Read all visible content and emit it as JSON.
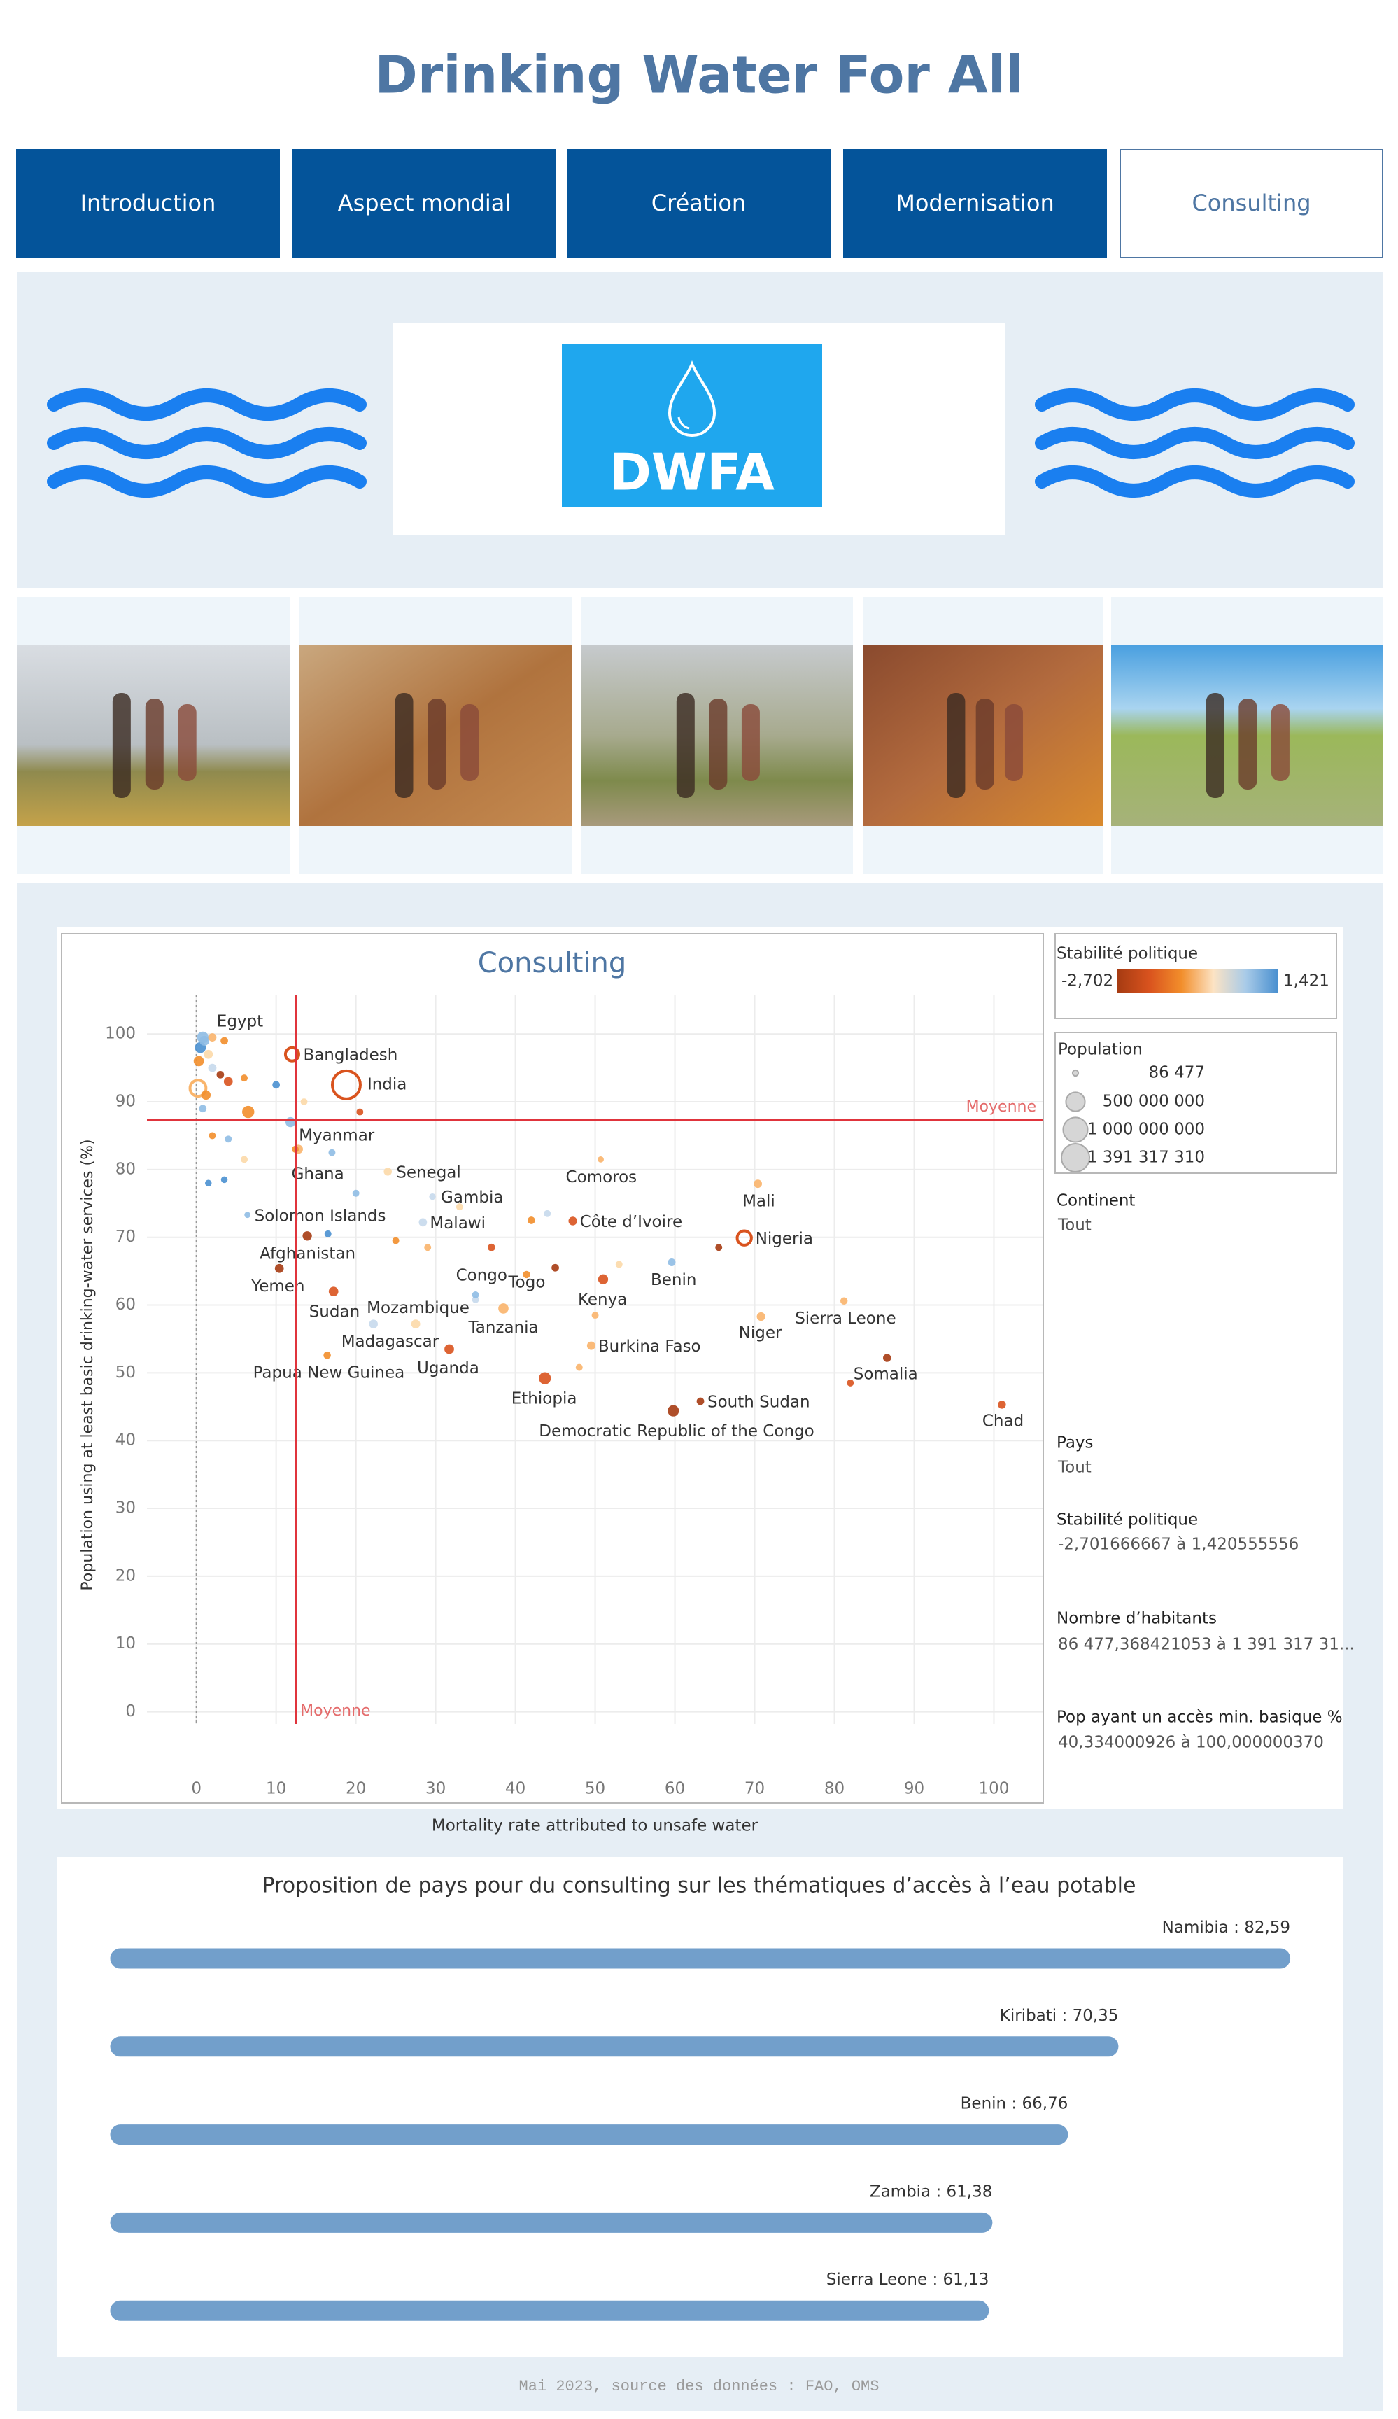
{
  "header": {
    "title": "Drinking Water For All"
  },
  "nav": {
    "items": [
      "Introduction",
      "Aspect mondial",
      "Création",
      "Modernisation",
      "Consulting"
    ],
    "active": 4
  },
  "banner": {
    "logo_text": "DWFA"
  },
  "chart_data": [
    {
      "type": "scatter",
      "title": "Consulting",
      "x_label": "Mortality rate attributed to unsafe water",
      "y_label": "Population using at least basic drinking-water services (%)",
      "xlim": [
        -6.2,
        106.1
      ],
      "ylim": [
        -1.8,
        105.7
      ],
      "xticks": [
        0,
        10,
        20,
        30,
        40,
        50,
        60,
        70,
        80,
        90,
        100
      ],
      "yticks": [
        0,
        10,
        20,
        30,
        40,
        50,
        60,
        70,
        80,
        90,
        100
      ],
      "grid": true,
      "mean_x": 12.5,
      "mean_y": 87.3,
      "mean_label": "Moyenne",
      "labels": [
        "Egypt",
        "Bangladesh",
        "India",
        "Myanmar",
        "Ghana",
        "Senegal",
        "Gambia",
        "Malawi",
        "Solomon Islands",
        "Afghanistan",
        "Yemen",
        "Sudan",
        "Mozambique",
        "Madagascar",
        "Papua New Guinea",
        "Uganda",
        "Congo",
        "Tanzania",
        "Togo",
        "Kenya",
        "Comoros",
        "Côte d’Ivoire",
        "Mali",
        "Nigeria",
        "Benin",
        "Niger",
        "Sierra Leone",
        "Burkina Faso",
        "Ethiopia",
        "South Sudan",
        "Democratic Republic of the Congo",
        "Somalia",
        "Chad",
        null,
        null,
        null,
        null,
        null,
        null,
        null,
        null,
        null,
        null,
        null,
        null,
        null,
        null,
        null,
        null,
        null,
        null,
        null,
        null,
        null,
        null,
        null,
        null,
        null,
        null,
        null,
        null,
        null,
        null,
        null,
        null,
        null,
        null,
        null,
        null,
        null
      ],
      "x": [
        0.8,
        12,
        18.8,
        11.8,
        12.8,
        24,
        29.6,
        28.4,
        6.4,
        13.9,
        10.4,
        17.2,
        27.5,
        22.2,
        16.4,
        31.7,
        35,
        38.5,
        41.4,
        51,
        50.7,
        47.2,
        70.4,
        68.7,
        59.6,
        70.8,
        81.2,
        49.5,
        43.7,
        63.2,
        59.8,
        86.6,
        101,
        0.5,
        1,
        2,
        3.5,
        0.3,
        1.5,
        0.2,
        1.2,
        2,
        4,
        3,
        6.5,
        0.8,
        2,
        4,
        6,
        1.5,
        3.5,
        10,
        13.5,
        17,
        20,
        16.5,
        20.5,
        25,
        29,
        33,
        37,
        42,
        44,
        45,
        48,
        50,
        65.5,
        82,
        53,
        35,
        12.4,
        6
      ],
      "y": [
        99.5,
        97,
        92.5,
        87,
        83,
        79.7,
        76,
        72.2,
        73.3,
        70.2,
        65.4,
        62,
        57.2,
        57.2,
        52.6,
        53.5,
        60.8,
        59.5,
        64.5,
        63.8,
        81.5,
        72.4,
        77.9,
        69.9,
        66.3,
        58.3,
        60.6,
        54,
        49.2,
        45.8,
        44.4,
        52.2,
        45.3,
        98,
        99,
        99.5,
        99,
        96,
        97,
        92,
        91,
        95,
        93,
        94,
        88.5,
        89,
        85,
        84.5,
        81.5,
        78,
        78.5,
        92.5,
        90,
        82.5,
        76.5,
        70.5,
        88.5,
        69.5,
        68.5,
        74.5,
        68.5,
        72.5,
        73.5,
        65.5,
        50.8,
        58.5,
        68.5,
        48.5,
        66,
        61.5,
        83,
        93.5
      ],
      "sizes": [
        102000000,
        165000000,
        1391317310,
        54000000,
        31000000,
        17000000,
        2400000,
        19000000,
        700000,
        39000000,
        30000000,
        44000000,
        31000000,
        28000000,
        9000000,
        46000000,
        5500000,
        60000000,
        8000000,
        54000000,
        900000,
        26000000,
        20000000,
        206000000,
        12000000,
        24000000,
        8000000,
        21000000,
        115000000,
        11000000,
        90000000,
        16000000,
        16000000,
        80000000,
        50000000,
        20000000,
        10000000,
        60000000,
        30000000,
        300000000,
        40000000,
        20000000,
        30000000,
        10000000,
        120000000,
        10000000,
        5000000,
        5000000,
        5000000,
        3000000,
        3000000,
        10000000,
        5000000,
        5000000,
        5000000,
        5000000,
        5000000,
        5000000,
        5000000,
        5000000,
        10000000,
        10000000,
        5000000,
        10000000,
        5000000,
        5000000,
        5000000,
        5000000,
        5000000,
        5000000,
        5000000,
        5000000
      ],
      "colors": [
        "#8fbce4",
        "#d9531e",
        "#d9531e",
        "#8fbce4",
        "#f9b46b",
        "#fcd9a8",
        "#c6d9ec",
        "#c6d9ec",
        "#8fbce4",
        "#a63b12",
        "#a63b12",
        "#d9531e",
        "#fcd9a8",
        "#c6d9ec",
        "#f28e2b",
        "#d9531e",
        "#c6d9ec",
        "#f9b46b",
        "#f28e2b",
        "#d9531e",
        "#f9b46b",
        "#d9531e",
        "#f9b46b",
        "#d9531e",
        "#8fbce4",
        "#f9b46b",
        "#f9b46b",
        "#f9b46b",
        "#d9531e",
        "#a63b12",
        "#a63b12",
        "#a63b12",
        "#d9531e",
        "#4a90d0",
        "#8fbce4",
        "#f9b46b",
        "#f28e2b",
        "#f28e2b",
        "#fcd9a8",
        "#f9b46b",
        "#f28e2b",
        "#c6d9ec",
        "#d9531e",
        "#a63b12",
        "#f28e2b",
        "#8fbce4",
        "#f28e2b",
        "#8fbce4",
        "#fcd9a8",
        "#4a90d0",
        "#4a90d0",
        "#4a90d0",
        "#fcd9a8",
        "#8fbce4",
        "#8fbce4",
        "#4a90d0",
        "#d9531e",
        "#f28e2b",
        "#f9b46b",
        "#fcd9a8",
        "#d9531e",
        "#f28e2b",
        "#c6d9ec",
        "#a63b12",
        "#f9b46b",
        "#f9b46b",
        "#a63b12",
        "#d9531e",
        "#fcd9a8",
        "#8fbce4",
        "#f28e2b",
        "#f28e2b"
      ],
      "color_legend": {
        "title": "Stabilité politique",
        "min": {
          "value": -2.702,
          "label": "-2,702"
        },
        "max": {
          "value": 1.421,
          "label": "1,421"
        },
        "colors": [
          "#a63b12",
          "#d9531e",
          "#f28e2b",
          "#fce3c4",
          "#a9cbe8",
          "#4a90d0"
        ]
      },
      "size_legend": {
        "title": "Population",
        "values": [
          {
            "value": 86477,
            "label": "86 477"
          },
          {
            "value": 500000000,
            "label": "500 000 000"
          },
          {
            "value": 1000000000,
            "label": "1 000 000 000"
          },
          {
            "value": 1391317310,
            "label": "1 391 317 310"
          }
        ]
      },
      "filters": [
        {
          "title": "Continent",
          "value": "Tout"
        },
        {
          "title": "Pays",
          "value": "Tout"
        },
        {
          "title": "Stabilité politique",
          "value": "-2,701666667 à 1,420555556"
        },
        {
          "title": "Nombre d’habitants",
          "value": "86 477,368421053 à 1 391 317 31..."
        },
        {
          "title": "Pop ayant un accès min. basique %",
          "value": "40,334000926 à 100,000000370"
        }
      ]
    },
    {
      "type": "hbar",
      "title": "Proposition de pays pour du consulting sur les thématiques d’accès à l’eau potable",
      "categories": [
        "Namibia",
        "Kiribati",
        "Benin",
        "Zambia",
        "Sierra Leone"
      ],
      "values": [
        82.59,
        70.35,
        66.76,
        61.38,
        61.13
      ],
      "value_labels": [
        "82,59",
        "70,35",
        "66,76",
        "61,38",
        "61,13"
      ],
      "color": "#729fcb"
    }
  ],
  "footer": {
    "text": "Mai 2023, source des données : FAO, OMS"
  }
}
